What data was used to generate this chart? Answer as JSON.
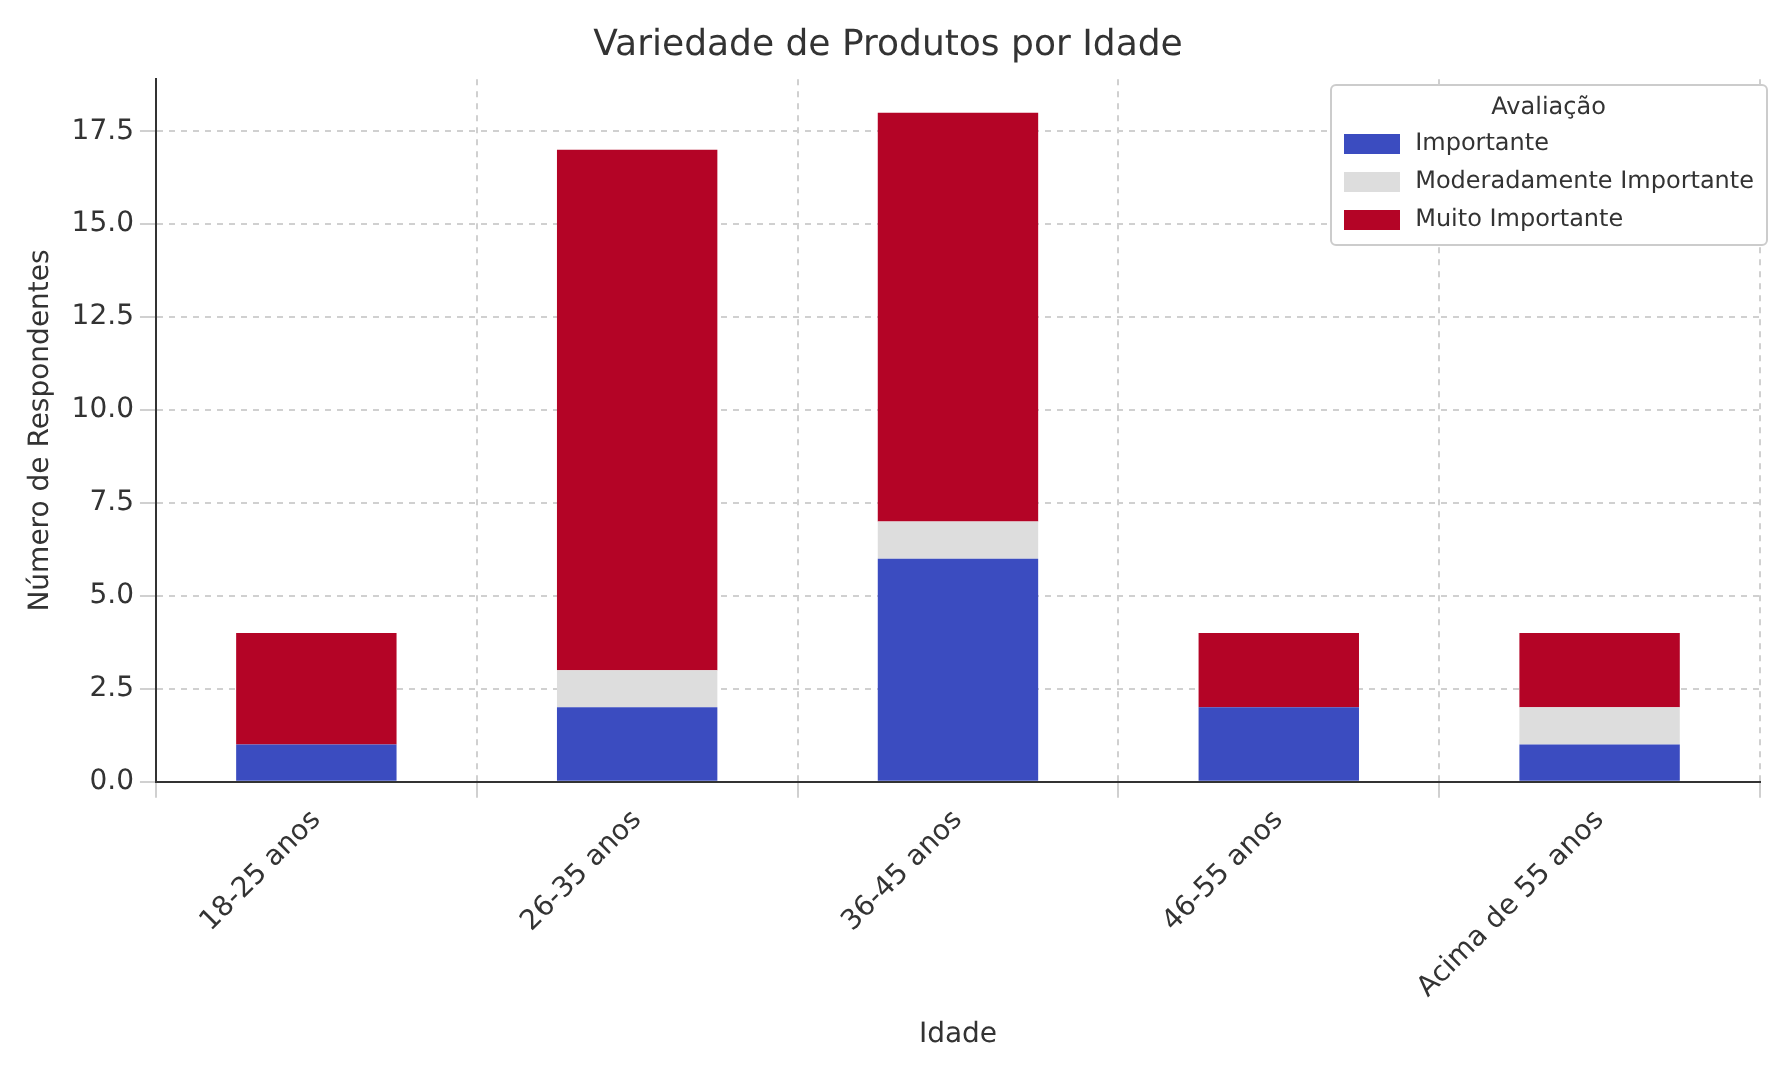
{
  "chart_data": {
    "type": "bar",
    "title": "Variedade de Produtos por Idade",
    "xlabel": "Idade",
    "ylabel": "Número de Respondentes",
    "legend_title": "Avaliação",
    "stacked": true,
    "legend": "top right",
    "grid": true,
    "categories": [
      "18-25 anos",
      "26-35 anos",
      "36-45 anos",
      "46-55 anos",
      "Acima de 55 anos"
    ],
    "series": [
      {
        "name": "Importante",
        "color": "#3b4cc0",
        "values": [
          1,
          2,
          6,
          2,
          1
        ]
      },
      {
        "name": "Moderadamente Importante",
        "color": "#dddddd",
        "values": [
          0,
          1,
          1,
          0,
          1
        ]
      },
      {
        "name": "Muito Importante",
        "color": "#b40426",
        "values": [
          3,
          14,
          11,
          2,
          2
        ]
      }
    ],
    "ylim": [
      0,
      18.9
    ],
    "yticks": [
      {
        "value": 0,
        "label": "0.0"
      },
      2.5,
      {
        "value": 5,
        "label": "5.0"
      },
      7.5,
      {
        "value": 10,
        "label": "10.0"
      },
      12.5,
      {
        "value": 15,
        "label": "15.0"
      },
      17.5
    ]
  }
}
